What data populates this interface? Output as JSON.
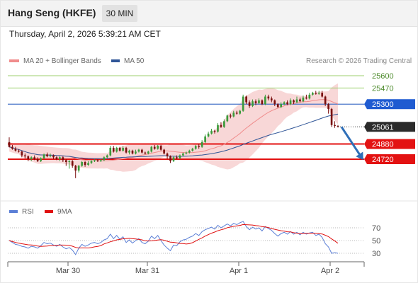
{
  "header": {
    "title": "Hang Seng (HKFE)",
    "timeframe": "30 MIN"
  },
  "datetime": "Thursday, April 2, 2026 5:39:21 AM CET",
  "legend_main": [
    {
      "label": "MA 20 + Bollinger Bands",
      "color": "#f08c8c"
    },
    {
      "label": "MA 50",
      "color": "#2f5597"
    }
  ],
  "legend_rsi": [
    {
      "label": "RSI",
      "color": "#5b7fd6"
    },
    {
      "label": "9MA",
      "color": "#e01010"
    }
  ],
  "copyright": "Research © 2026 Trading Central",
  "colors": {
    "bull": "#3a9a3a",
    "bear": "#7a0f0f",
    "resistance_line": "#9ccf6e",
    "pivot_line": "#4a76c9",
    "support_line": "#e31212",
    "bollinger_fill": "#f6c9c9",
    "ma20": "#f08c8c",
    "ma50": "#2f5597",
    "arrow": "#2f6fb8"
  },
  "chart_data": [
    {
      "type": "candlestick",
      "title": "Hang Seng (HKFE) 30 MIN",
      "x_labels": [
        "Mar 30",
        "Mar 31",
        "Apr 1",
        "Apr 2"
      ],
      "ylim": [
        24500,
        25750
      ],
      "key_levels": [
        {
          "value": 25600,
          "label": "25600",
          "kind": "resistance"
        },
        {
          "value": 25470,
          "label": "25470",
          "kind": "resistance"
        },
        {
          "value": 25300,
          "label": "25300",
          "kind": "pivot"
        },
        {
          "value": 24880,
          "label": "24880",
          "kind": "support"
        },
        {
          "value": 24720,
          "label": "24720",
          "kind": "support"
        }
      ],
      "last_price": {
        "value": 25061,
        "label": "25061"
      },
      "candles": [
        [
          24900,
          24850,
          24950,
          24845
        ],
        [
          24850,
          24830,
          24870,
          24820
        ],
        [
          24830,
          24810,
          24850,
          24800
        ],
        [
          24810,
          24800,
          24825,
          24790
        ],
        [
          24800,
          24760,
          24810,
          24740
        ],
        [
          24760,
          24750,
          24780,
          24730
        ],
        [
          24750,
          24720,
          24760,
          24700
        ],
        [
          24720,
          24740,
          24750,
          24700
        ],
        [
          24740,
          24720,
          24760,
          24710
        ],
        [
          24720,
          24700,
          24740,
          24690
        ],
        [
          24700,
          24730,
          24740,
          24690
        ],
        [
          24730,
          24770,
          24780,
          24720
        ],
        [
          24770,
          24750,
          24790,
          24740
        ],
        [
          24750,
          24760,
          24780,
          24740
        ],
        [
          24760,
          24740,
          24770,
          24720
        ],
        [
          24740,
          24720,
          24750,
          24710
        ],
        [
          24720,
          24740,
          24750,
          24700
        ],
        [
          24740,
          24710,
          24750,
          24690
        ],
        [
          24710,
          24690,
          24720,
          24650
        ],
        [
          24690,
          24700,
          24710,
          24620
        ],
        [
          24700,
          24650,
          24710,
          24630
        ],
        [
          24650,
          24600,
          24660,
          24520
        ],
        [
          24600,
          24650,
          24660,
          24580
        ],
        [
          24650,
          24690,
          24700,
          24640
        ],
        [
          24690,
          24660,
          24700,
          24640
        ],
        [
          24660,
          24680,
          24700,
          24650
        ],
        [
          24680,
          24700,
          24710,
          24670
        ],
        [
          24700,
          24710,
          24720,
          24690
        ],
        [
          24710,
          24700,
          24720,
          24690
        ],
        [
          24700,
          24710,
          24720,
          24690
        ],
        [
          24710,
          24740,
          24750,
          24700
        ],
        [
          24740,
          24760,
          24770,
          24730
        ],
        [
          24760,
          24840,
          24860,
          24750
        ],
        [
          24840,
          24800,
          24860,
          24790
        ],
        [
          24800,
          24840,
          24850,
          24790
        ],
        [
          24840,
          24810,
          24850,
          24800
        ],
        [
          24810,
          24840,
          24860,
          24800
        ],
        [
          24840,
          24790,
          24850,
          24780
        ],
        [
          24790,
          24810,
          24820,
          24770
        ],
        [
          24810,
          24780,
          24820,
          24770
        ],
        [
          24780,
          24800,
          24820,
          24770
        ],
        [
          24800,
          24820,
          24830,
          24790
        ],
        [
          24820,
          24790,
          24830,
          24780
        ],
        [
          24790,
          24780,
          24800,
          24770
        ],
        [
          24780,
          24800,
          24810,
          24770
        ],
        [
          24800,
          24850,
          24860,
          24790
        ],
        [
          24850,
          24830,
          24870,
          24820
        ],
        [
          24830,
          24860,
          24870,
          24820
        ],
        [
          24860,
          24820,
          24870,
          24810
        ],
        [
          24820,
          24780,
          24830,
          24770
        ],
        [
          24780,
          24750,
          24790,
          24720
        ],
        [
          24750,
          24700,
          24760,
          24680
        ],
        [
          24700,
          24740,
          24750,
          24690
        ],
        [
          24740,
          24730,
          24760,
          24720
        ],
        [
          24730,
          24760,
          24770,
          24720
        ],
        [
          24760,
          24780,
          24790,
          24750
        ],
        [
          24780,
          24790,
          24800,
          24770
        ],
        [
          24790,
          24810,
          24820,
          24780
        ],
        [
          24810,
          24830,
          24840,
          24800
        ],
        [
          24830,
          24860,
          24870,
          24820
        ],
        [
          24860,
          24850,
          24880,
          24830
        ],
        [
          24850,
          24900,
          24920,
          24840
        ],
        [
          24900,
          24960,
          24980,
          24890
        ],
        [
          24960,
          24990,
          25010,
          24950
        ],
        [
          24990,
          25020,
          25040,
          24980
        ],
        [
          25020,
          25010,
          25030,
          24990
        ],
        [
          25010,
          25080,
          25100,
          25000
        ],
        [
          25080,
          25060,
          25110,
          25050
        ],
        [
          25060,
          25120,
          25140,
          25050
        ],
        [
          25120,
          25180,
          25190,
          25110
        ],
        [
          25180,
          25170,
          25200,
          25150
        ],
        [
          25170,
          25210,
          25230,
          25160
        ],
        [
          25210,
          25200,
          25230,
          25190
        ],
        [
          25200,
          25230,
          25240,
          25190
        ],
        [
          25230,
          25380,
          25400,
          25220
        ],
        [
          25380,
          25320,
          25390,
          25300
        ],
        [
          25320,
          25280,
          25340,
          25260
        ],
        [
          25280,
          25330,
          25350,
          25270
        ],
        [
          25330,
          25310,
          25350,
          25290
        ],
        [
          25310,
          25340,
          25360,
          25300
        ],
        [
          25340,
          25300,
          25350,
          25290
        ],
        [
          25300,
          25380,
          25400,
          25290
        ],
        [
          25380,
          25360,
          25400,
          25340
        ],
        [
          25360,
          25340,
          25380,
          25320
        ],
        [
          25340,
          25300,
          25350,
          25280
        ],
        [
          25300,
          25270,
          25310,
          25260
        ],
        [
          25270,
          25300,
          25320,
          25260
        ],
        [
          25300,
          25320,
          25330,
          25290
        ],
        [
          25320,
          25300,
          25340,
          25290
        ],
        [
          25300,
          25340,
          25360,
          25290
        ],
        [
          25340,
          25320,
          25350,
          25300
        ],
        [
          25320,
          25350,
          25380,
          25310
        ],
        [
          25350,
          25330,
          25370,
          25320
        ],
        [
          25330,
          25370,
          25390,
          25320
        ],
        [
          25370,
          25360,
          25400,
          25350
        ],
        [
          25360,
          25400,
          25420,
          25350
        ],
        [
          25400,
          25420,
          25430,
          25390
        ],
        [
          25420,
          25410,
          25440,
          25400
        ],
        [
          25410,
          25420,
          25440,
          25400
        ],
        [
          25420,
          25380,
          25440,
          25370
        ],
        [
          25380,
          25300,
          25390,
          25280
        ],
        [
          25300,
          25250,
          25310,
          25200
        ],
        [
          25250,
          25080,
          25260,
          25060
        ],
        [
          25080,
          25070,
          25120,
          25050
        ],
        [
          25070,
          25061,
          25080,
          25055
        ]
      ],
      "series": [
        {
          "name": "MA 20",
          "values": []
        },
        {
          "name": "MA 50",
          "values": []
        }
      ],
      "forecast_arrow": {
        "from": 25061,
        "to": 24720
      }
    },
    {
      "type": "line",
      "title": "RSI",
      "ylim": [
        20,
        80
      ],
      "yticks": [
        70,
        50,
        30
      ],
      "series": [
        {
          "name": "RSI",
          "values": [
            50,
            47,
            44,
            43,
            41,
            40,
            38,
            41,
            40,
            38,
            42,
            47,
            45,
            46,
            43,
            41,
            44,
            40,
            37,
            39,
            35,
            28,
            38,
            44,
            41,
            43,
            46,
            47,
            45,
            47,
            51,
            53,
            60,
            53,
            58,
            52,
            56,
            47,
            51,
            46,
            50,
            53,
            47,
            45,
            49,
            57,
            53,
            58,
            50,
            43,
            38,
            34,
            43,
            42,
            48,
            51,
            52,
            55,
            57,
            61,
            58,
            64,
            67,
            69,
            71,
            68,
            74,
            70,
            73,
            76,
            73,
            77,
            75,
            78,
            80,
            72,
            67,
            71,
            68,
            70,
            65,
            72,
            69,
            66,
            61,
            57,
            61,
            63,
            60,
            64,
            60,
            63,
            59,
            63,
            60,
            62,
            63,
            58,
            60,
            55,
            45,
            40,
            30,
            31,
            30
          ]
        },
        {
          "name": "9MA",
          "values": []
        }
      ]
    }
  ]
}
